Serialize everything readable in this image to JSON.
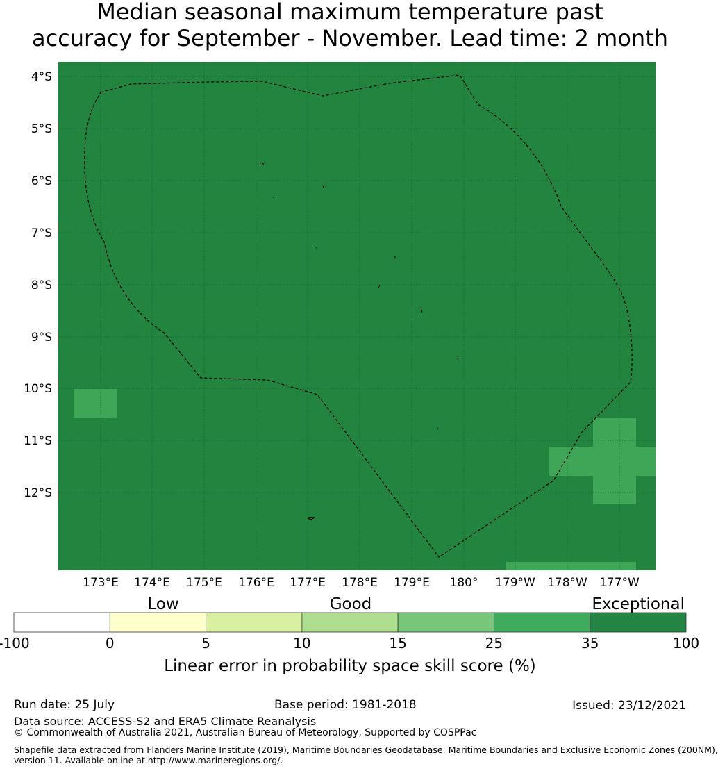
{
  "title": {
    "line1": "Median seasonal maximum temperature past",
    "line2": "accuracy for September - November. Lead time: 2 month"
  },
  "map": {
    "background_color": "#23843f",
    "cell_color": "#3ea656",
    "lat_labels": [
      "4°S",
      "5°S",
      "6°S",
      "7°S",
      "8°S",
      "9°S",
      "10°S",
      "11°S",
      "12°S"
    ],
    "lon_labels": [
      "173°E",
      "174°E",
      "175°E",
      "176°E",
      "177°E",
      "178°E",
      "179°E",
      "180°",
      "179°W",
      "178°W",
      "177°W"
    ]
  },
  "colorbar": {
    "category_labels": [
      "Low",
      "Good",
      "Exceptional"
    ],
    "tick_labels": [
      "-100",
      "0",
      "5",
      "10",
      "15",
      "25",
      "35",
      "100"
    ],
    "colors": [
      "#ffffff",
      "#ffffcc",
      "#d9f0a3",
      "#addd8e",
      "#78c679",
      "#41ab5d",
      "#238443"
    ],
    "axis_label": "Linear error in probability space skill score (%)"
  },
  "footer": {
    "run_date": "Run date: 25 July",
    "base_period": "Base period: 1981-2018",
    "issued": "Issued: 23/12/2021",
    "data_source": "Data source: ACCESS-S2 and ERA5 Climate Reanalysis",
    "copyright": "© Commonwealth of Australia 2021, Australian Bureau of Meteorology, Supported by COSPPac",
    "shapefile_line1": "Shapefile data extracted from Flanders Marine Institute (2019), Maritime Boundaries Geodatabase: Maritime Boundaries and Exclusive Economic Zones (200NM),",
    "shapefile_line2": "version 11. Available online at http://www.marineregions.org/."
  }
}
